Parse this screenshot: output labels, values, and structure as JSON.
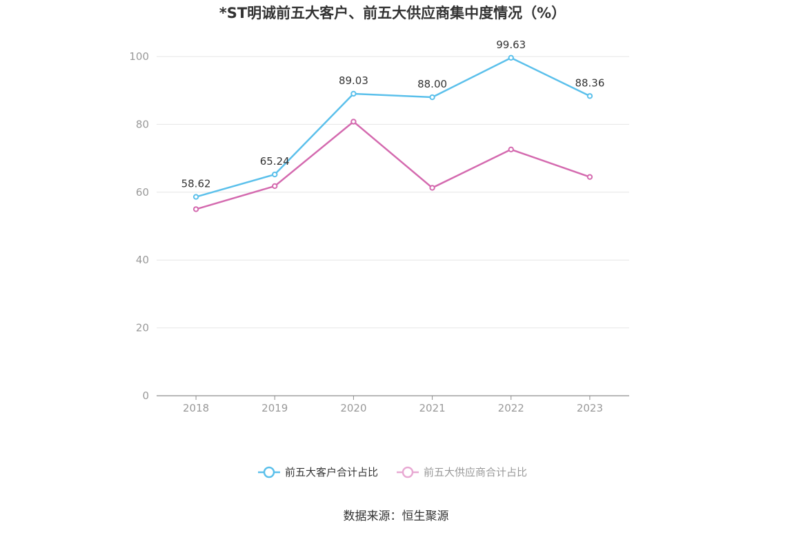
{
  "chart_data": {
    "type": "line",
    "title": "*ST明诚前五大客户、前五大供应商集中度情况（%）",
    "xlabel": "",
    "ylabel": "",
    "categories": [
      "2018",
      "2019",
      "2020",
      "2021",
      "2022",
      "2023"
    ],
    "ylim": [
      0,
      100
    ],
    "yticks": [
      0,
      20,
      40,
      60,
      80,
      100
    ],
    "grid": true,
    "legend_position": "bottom",
    "series": [
      {
        "name": "前五大客户合计占比",
        "color": "#5bc0eb",
        "values": [
          58.62,
          65.24,
          89.03,
          88.0,
          99.63,
          88.36
        ],
        "labels": [
          "58.62",
          "65.24",
          "89.03",
          "88.00",
          "99.63",
          "88.36"
        ]
      },
      {
        "name": "前五大供应商合计占比",
        "color": "#d46aaf",
        "values": [
          55.0,
          61.8,
          80.8,
          61.3,
          72.6,
          64.5
        ],
        "labels": []
      }
    ]
  },
  "source": "数据来源：恒生聚源"
}
